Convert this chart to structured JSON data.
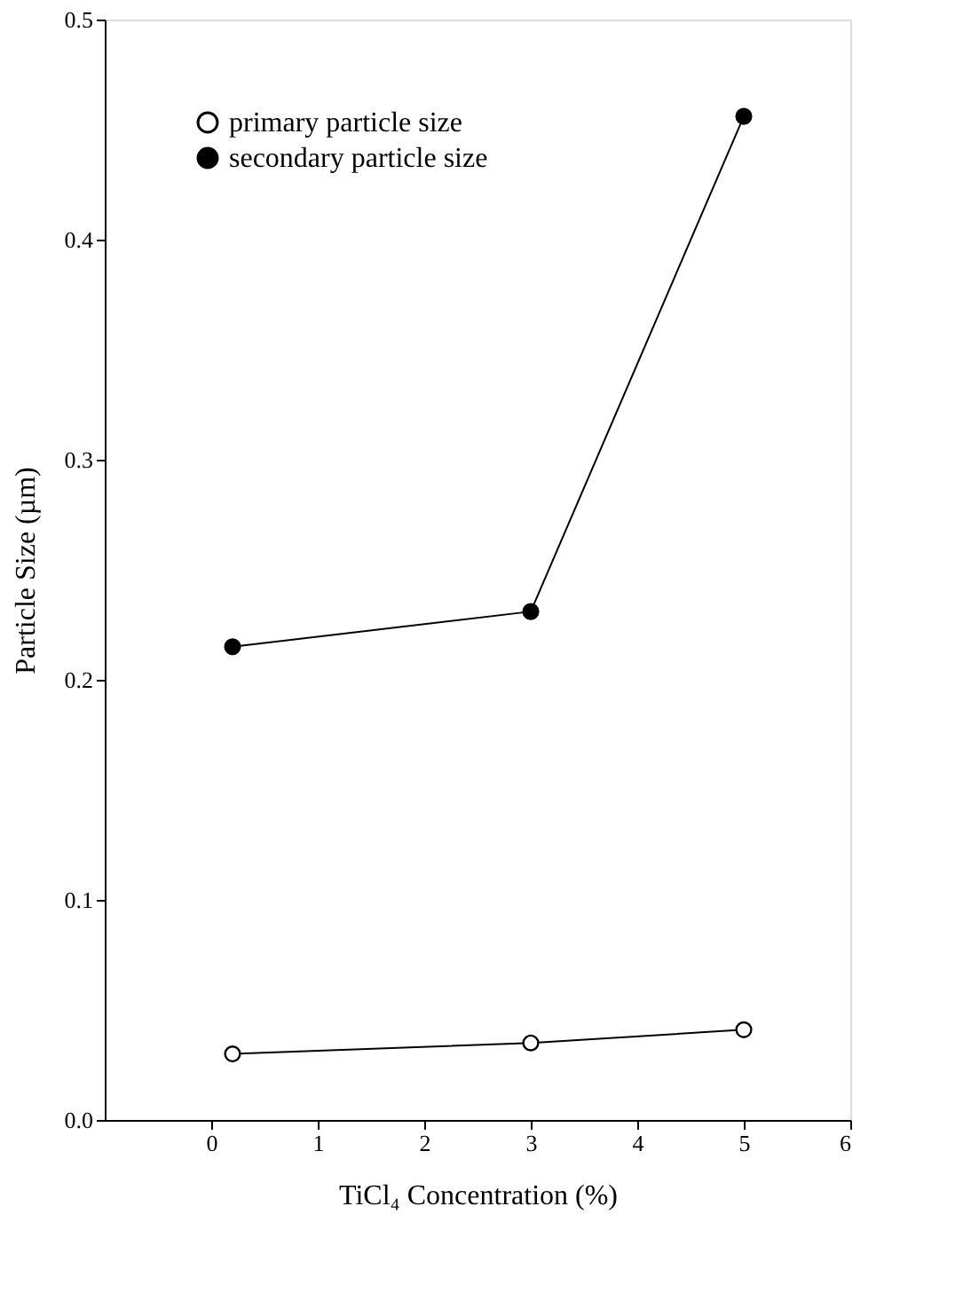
{
  "chart_data": {
    "type": "line",
    "xlabel": "TiCl₄ Concentration (%)",
    "ylabel": "Particle Size (µm)",
    "xlim": [
      -1,
      6
    ],
    "xticks": [
      0,
      1,
      2,
      3,
      4,
      5,
      6
    ],
    "ylim": [
      0,
      0.5
    ],
    "yticks": [
      {
        "value": 0,
        "label": "0.0"
      },
      {
        "value": 0.1,
        "label": "0.1"
      },
      {
        "value": 0.2,
        "label": "0.2"
      },
      {
        "value": 0.3,
        "label": "0.3"
      },
      {
        "value": 0.4,
        "label": "0.4"
      },
      {
        "value": 0.5,
        "label": "0.5"
      }
    ],
    "legend": "top left",
    "grid": false,
    "marker": "circle",
    "line_style": "solid",
    "series": [
      {
        "name": "primary particle size",
        "color": "#000000",
        "x": [
          0.2,
          3,
          5
        ],
        "values": [
          0.03,
          0.035,
          0.041
        ]
      },
      {
        "name": "secondary particle size",
        "color": "#000000",
        "x": [
          0.2,
          3,
          5
        ],
        "values": [
          0.215,
          0.231,
          0.456
        ]
      }
    ]
  }
}
